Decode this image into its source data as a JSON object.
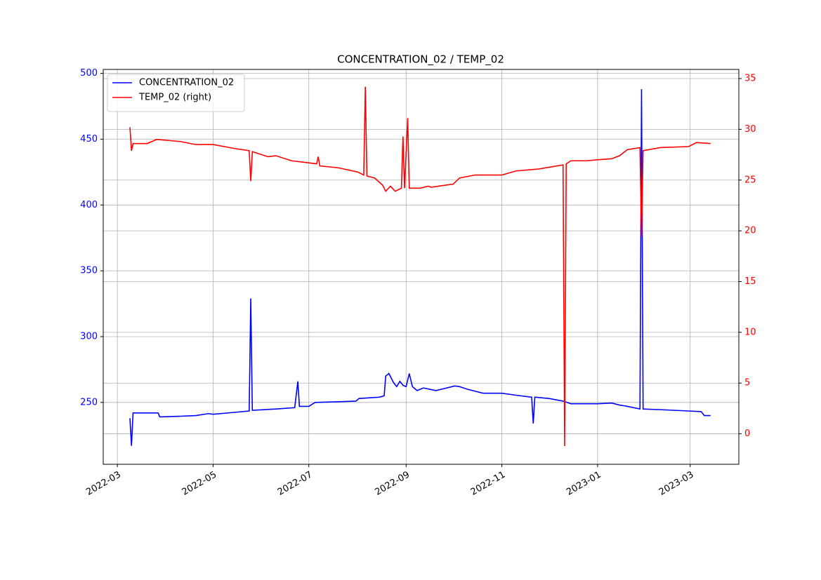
{
  "chart_data": {
    "type": "line",
    "title": "CONCENTRATION_02 / TEMP_02",
    "xlim": [
      "2022-02-20",
      "2023-04-01"
    ],
    "xticks": [
      {
        "value": "2022-03-01",
        "label": "2022-03"
      },
      {
        "value": "2022-05-01",
        "label": "2022-05"
      },
      {
        "value": "2022-07-01",
        "label": "2022-07"
      },
      {
        "value": "2022-09-01",
        "label": "2022-09"
      },
      {
        "value": "2022-11-01",
        "label": "2022-11"
      },
      {
        "value": "2023-01-01",
        "label": "2023-01"
      },
      {
        "value": "2023-03-01",
        "label": "2023-03"
      }
    ],
    "ylim": [
      203,
      503
    ],
    "yticks": [
      250,
      300,
      350,
      400,
      450,
      500
    ],
    "y2lim": [
      -3,
      35.9
    ],
    "y2ticks": [
      0,
      5,
      10,
      15,
      20,
      25,
      30,
      35
    ],
    "grid": true,
    "legend": "upper left",
    "series": [
      {
        "name": "CONCENTRATION_02",
        "color": "#0000ff",
        "x": [
          "2022-03-09",
          "2022-03-10",
          "2022-03-11",
          "2022-03-20",
          "2022-03-27",
          "2022-03-28",
          "2022-04-10",
          "2022-04-20",
          "2022-04-28",
          "2022-05-01",
          "2022-05-15",
          "2022-05-24",
          "2022-05-25",
          "2022-05-26",
          "2022-06-10",
          "2022-06-22",
          "2022-06-24",
          "2022-06-25",
          "2022-07-01",
          "2022-07-05",
          "2022-07-20",
          "2022-07-31",
          "2022-08-02",
          "2022-08-15",
          "2022-08-18",
          "2022-08-19",
          "2022-08-21",
          "2022-08-24",
          "2022-08-26",
          "2022-08-28",
          "2022-08-30",
          "2022-09-01",
          "2022-09-03",
          "2022-09-05",
          "2022-09-08",
          "2022-09-12",
          "2022-09-16",
          "2022-09-20",
          "2022-10-02",
          "2022-10-05",
          "2022-10-10",
          "2022-10-20",
          "2022-11-01",
          "2022-11-10",
          "2022-11-20",
          "2022-11-21",
          "2022-11-22",
          "2022-12-01",
          "2022-12-10",
          "2022-12-15",
          "2023-01-01",
          "2023-01-10",
          "2023-01-15",
          "2023-01-20",
          "2023-01-28",
          "2023-01-29",
          "2023-01-30",
          "2023-02-10",
          "2023-02-28",
          "2023-03-08",
          "2023-03-10",
          "2023-03-14"
        ],
        "values": [
          238,
          217,
          242,
          242,
          242,
          239,
          239.5,
          240,
          241.5,
          241,
          242.5,
          243.5,
          329,
          244,
          245,
          246,
          266,
          247,
          247,
          250,
          250.5,
          251,
          253,
          254,
          255,
          270,
          272,
          265,
          262,
          266,
          263,
          262,
          272,
          262,
          259,
          261,
          260,
          259,
          262.5,
          262,
          260,
          257,
          257,
          255.5,
          254,
          234,
          254,
          253,
          251,
          249,
          249,
          249.5,
          248,
          247,
          245,
          488,
          245,
          244.5,
          243.5,
          243,
          240,
          240
        ]
      },
      {
        "name": "TEMP_02 (right)",
        "color": "#ff0000",
        "axis": "y2",
        "x": [
          "2022-03-09",
          "2022-03-10",
          "2022-03-11",
          "2022-03-20",
          "2022-03-26",
          "2022-04-10",
          "2022-04-20",
          "2022-05-01",
          "2022-05-15",
          "2022-05-24",
          "2022-05-25",
          "2022-05-26",
          "2022-06-05",
          "2022-06-10",
          "2022-06-20",
          "2022-07-01",
          "2022-07-06",
          "2022-07-07",
          "2022-07-08",
          "2022-07-20",
          "2022-08-01",
          "2022-08-05",
          "2022-08-06",
          "2022-08-07",
          "2022-08-12",
          "2022-08-17",
          "2022-08-19",
          "2022-08-22",
          "2022-08-25",
          "2022-08-29",
          "2022-08-30",
          "2022-08-31",
          "2022-09-02",
          "2022-09-03",
          "2022-09-10",
          "2022-09-15",
          "2022-09-17",
          "2022-10-01",
          "2022-10-05",
          "2022-10-15",
          "2022-11-01",
          "2022-11-10",
          "2022-11-25",
          "2022-12-10",
          "2022-12-11",
          "2022-12-12",
          "2022-12-15",
          "2022-12-25",
          "2023-01-01",
          "2023-01-10",
          "2023-01-15",
          "2023-01-20",
          "2023-01-28",
          "2023-01-29",
          "2023-01-30",
          "2023-02-10",
          "2023-02-28",
          "2023-03-05",
          "2023-03-14"
        ],
        "values": [
          30.2,
          27.9,
          28.6,
          28.6,
          29,
          28.8,
          28.5,
          28.5,
          28.1,
          27.9,
          24.9,
          27.8,
          27.3,
          27.4,
          26.9,
          26.7,
          26.6,
          27.3,
          26.4,
          26.2,
          25.8,
          25.5,
          34.2,
          25.4,
          25.2,
          24.5,
          23.9,
          24.4,
          23.9,
          24.2,
          29.3,
          24.2,
          31.1,
          24.2,
          24.2,
          24.4,
          24.3,
          24.6,
          25.2,
          25.5,
          25.5,
          25.9,
          26.1,
          26.5,
          -1.2,
          26.6,
          26.9,
          26.9,
          27,
          27.1,
          27.4,
          28,
          28.2,
          19.4,
          27.9,
          28.2,
          28.3,
          28.7,
          28.6
        ]
      }
    ]
  }
}
